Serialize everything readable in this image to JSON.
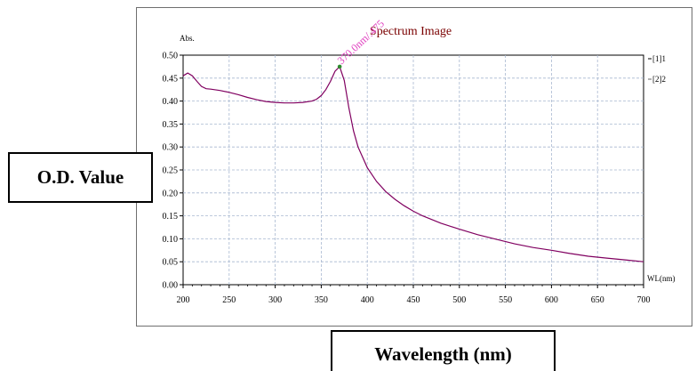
{
  "chart_data": {
    "type": "line",
    "title": "Spectrum Image",
    "y_unit_label": "Abs.",
    "x_unit_label": "WL(nm)",
    "xlim": [
      200,
      700
    ],
    "ylim": [
      0.0,
      0.5
    ],
    "x_ticks": [
      200,
      250,
      300,
      350,
      400,
      450,
      500,
      550,
      600,
      650,
      700
    ],
    "y_ticks": [
      "0.00",
      "0.05",
      "0.10",
      "0.15",
      "0.20",
      "0.25",
      "0.30",
      "0.35",
      "0.40",
      "0.45",
      "0.50"
    ],
    "grid": true,
    "legend": {
      "placement": "right",
      "entries": [
        "[1]1",
        "[2]2"
      ]
    },
    "series": [
      {
        "color": "#800060",
        "x": [
          200,
          205,
          210,
          215,
          220,
          225,
          230,
          240,
          250,
          260,
          270,
          280,
          290,
          300,
          310,
          320,
          330,
          340,
          345,
          350,
          355,
          360,
          365,
          370,
          375,
          380,
          385,
          390,
          400,
          410,
          420,
          430,
          440,
          450,
          460,
          480,
          500,
          520,
          540,
          560,
          580,
          600,
          620,
          640,
          660,
          680,
          700
        ],
        "y": [
          0.455,
          0.461,
          0.455,
          0.443,
          0.432,
          0.427,
          0.426,
          0.423,
          0.419,
          0.414,
          0.408,
          0.403,
          0.399,
          0.397,
          0.396,
          0.396,
          0.397,
          0.4,
          0.404,
          0.412,
          0.425,
          0.443,
          0.465,
          0.475,
          0.445,
          0.385,
          0.335,
          0.3,
          0.255,
          0.225,
          0.203,
          0.186,
          0.172,
          0.16,
          0.15,
          0.134,
          0.121,
          0.109,
          0.099,
          0.089,
          0.081,
          0.075,
          0.068,
          0.062,
          0.058,
          0.054,
          0.05
        ]
      }
    ],
    "peak_marker": {
      "x": 370.0,
      "y": 0.475,
      "color": "#2e8b2e"
    },
    "annotation": {
      "text": "370.0nm/.475",
      "color": "#e040c0"
    }
  },
  "axis_titles": {
    "y": "O.D. Value",
    "x": "Wavelength (nm)"
  }
}
